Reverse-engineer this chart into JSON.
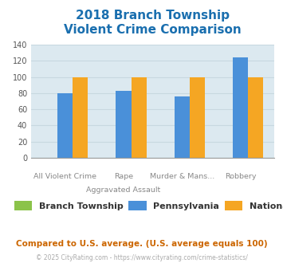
{
  "title_line1": "2018 Branch Township",
  "title_line2": "Violent Crime Comparison",
  "title_color": "#1a6faf",
  "series": [
    {
      "name": "Branch Township",
      "color": "#8bc34a",
      "values": [
        0,
        0,
        0,
        0
      ]
    },
    {
      "name": "Pennsylvania",
      "color": "#4a90d9",
      "values": [
        80,
        83,
        76,
        124
      ]
    },
    {
      "name": "National",
      "color": "#f5a623",
      "values": [
        100,
        100,
        100,
        100
      ]
    }
  ],
  "ylim": [
    0,
    140
  ],
  "yticks": [
    0,
    20,
    40,
    60,
    80,
    100,
    120,
    140
  ],
  "bg_color": "#ffffff",
  "plot_bg_color": "#dce9f0",
  "grid_color": "#c8d8e0",
  "x_top_labels": [
    "",
    "Rape",
    "Murder & Mans...",
    ""
  ],
  "x_bottom_labels": [
    "All Violent Crime",
    "Aggravated Assault",
    "",
    "Robbery"
  ],
  "footer_text": "Compared to U.S. average. (U.S. average equals 100)",
  "footer_color": "#cc6600",
  "copyright_text": "© 2025 CityRating.com - https://www.cityrating.com/crime-statistics/",
  "copyright_color": "#aaaaaa",
  "bar_width": 0.26
}
